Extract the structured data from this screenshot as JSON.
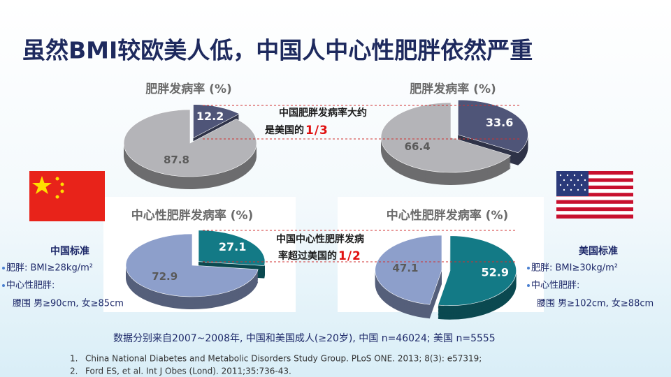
{
  "title": "虽然BMI较欧美人低，中国人中心性肥胖依然严重",
  "chart_data": [
    {
      "type": "pie",
      "title": "肥胖发病率 (%)",
      "values": [
        12.2,
        87.8
      ],
      "colors": [
        "#4f5578",
        "#b4b4b8"
      ]
    },
    {
      "type": "pie",
      "title": "肥胖发病率 (%)",
      "values": [
        33.6,
        66.4
      ],
      "colors": [
        "#4f5578",
        "#b4b4b8"
      ]
    },
    {
      "type": "pie",
      "title": "中心性肥胖发病率 (%)",
      "values": [
        27.1,
        72.9
      ],
      "colors": [
        "#137a86",
        "#8d9fcb"
      ]
    },
    {
      "type": "pie",
      "title": "中心性肥胖发病率 (%)",
      "values": [
        52.9,
        47.1
      ],
      "colors": [
        "#137a86",
        "#8d9fcb"
      ]
    }
  ],
  "annotations": [
    {
      "line1": "中国肥胖发病率大约",
      "line2": "是美国的",
      "highlight": "1/3"
    },
    {
      "line1": "中国中心性肥胖发病",
      "line2": "率超过美国的",
      "highlight": "1/2"
    }
  ],
  "standards": [
    {
      "heading": "中国标准",
      "items": [
        "肥胖: BMI≥28kg/m²",
        "中心性肥胖:",
        "腰围 男≥90cm, 女≥85cm"
      ]
    },
    {
      "heading": "美国标准",
      "items": [
        "肥胖: BMI≥30kg/m²",
        "中心性肥胖:",
        "腰围 男≥102cm, 女≥88cm"
      ]
    }
  ],
  "source": "数据分别来自2007~2008年, 中国和美国成人(≥20岁), 中国 n=46024; 美国 n=5555",
  "references": [
    "China National Diabetes and Metabolic Disorders Study Group. PLoS ONE. 2013; 8(3): e57319;",
    "Ford ES, et al. Int J Obes (Lond). 2011;35:736-43."
  ]
}
